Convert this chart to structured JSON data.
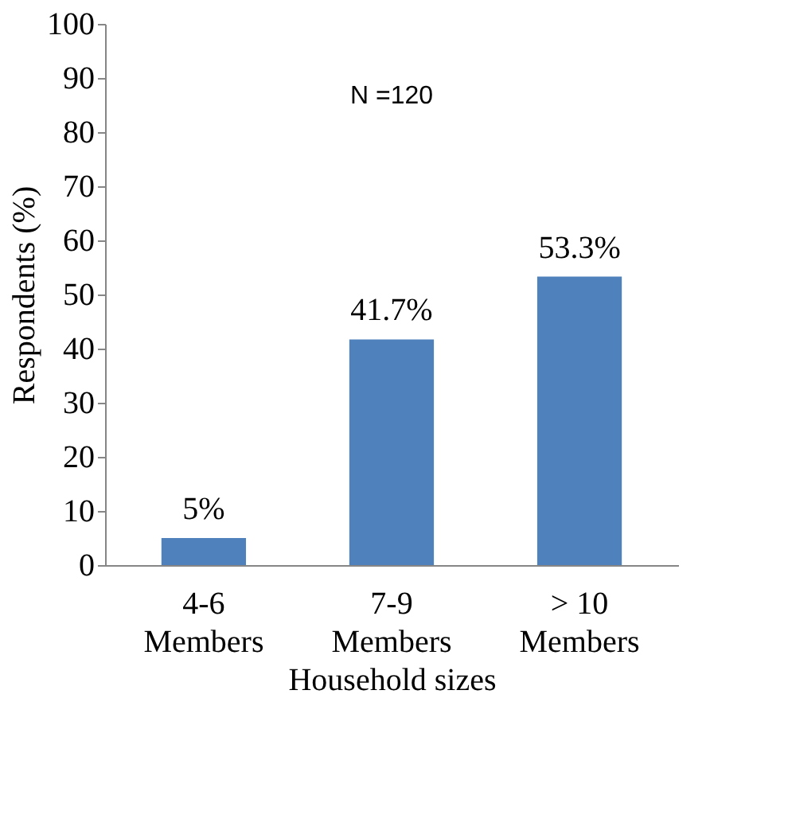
{
  "chart_data": {
    "type": "bar",
    "xlabel": "Household sizes",
    "ylabel": "Respondents (%)",
    "categories": [
      "4-6\nMembers",
      "7-9\nMembers",
      "> 10\nMembers"
    ],
    "values": [
      5,
      41.7,
      53.3
    ],
    "value_labels": [
      "5%",
      "41.7%",
      "53.3%"
    ],
    "color": "#4f81bd",
    "ylim": [
      0,
      100
    ],
    "yticks": [
      0,
      10,
      20,
      30,
      40,
      50,
      60,
      70,
      80,
      90,
      100
    ],
    "grid": false,
    "annotations": [
      "N =120"
    ]
  }
}
